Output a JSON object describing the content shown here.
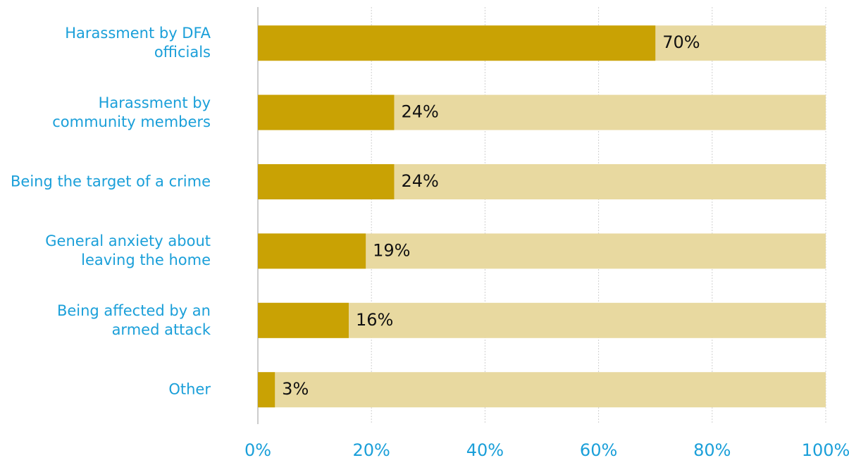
{
  "chart_data": {
    "type": "bar",
    "orientation": "horizontal",
    "categories": [
      "Harassment by DFA\nofficials",
      "Harassment by\ncommunity members",
      "Being the target of a crime",
      "General anxiety about\nleaving the home",
      "Being affected by an\narmed attack",
      "Other"
    ],
    "values": [
      70,
      24,
      24,
      19,
      16,
      3
    ],
    "value_labels": [
      "70%",
      "24%",
      "24%",
      "19%",
      "16%",
      "3%"
    ],
    "color": "#c9a204",
    "track_color": "#e8d9a0",
    "xlim": [
      0,
      100
    ],
    "xticks": [
      {
        "value": 0,
        "label": "0%"
      },
      {
        "value": 20,
        "label": "20%"
      },
      {
        "value": 40,
        "label": "40%"
      },
      {
        "value": 60,
        "label": "60%"
      },
      {
        "value": 80,
        "label": "80%"
      },
      {
        "value": 100,
        "label": "100%"
      }
    ],
    "grid": true
  }
}
